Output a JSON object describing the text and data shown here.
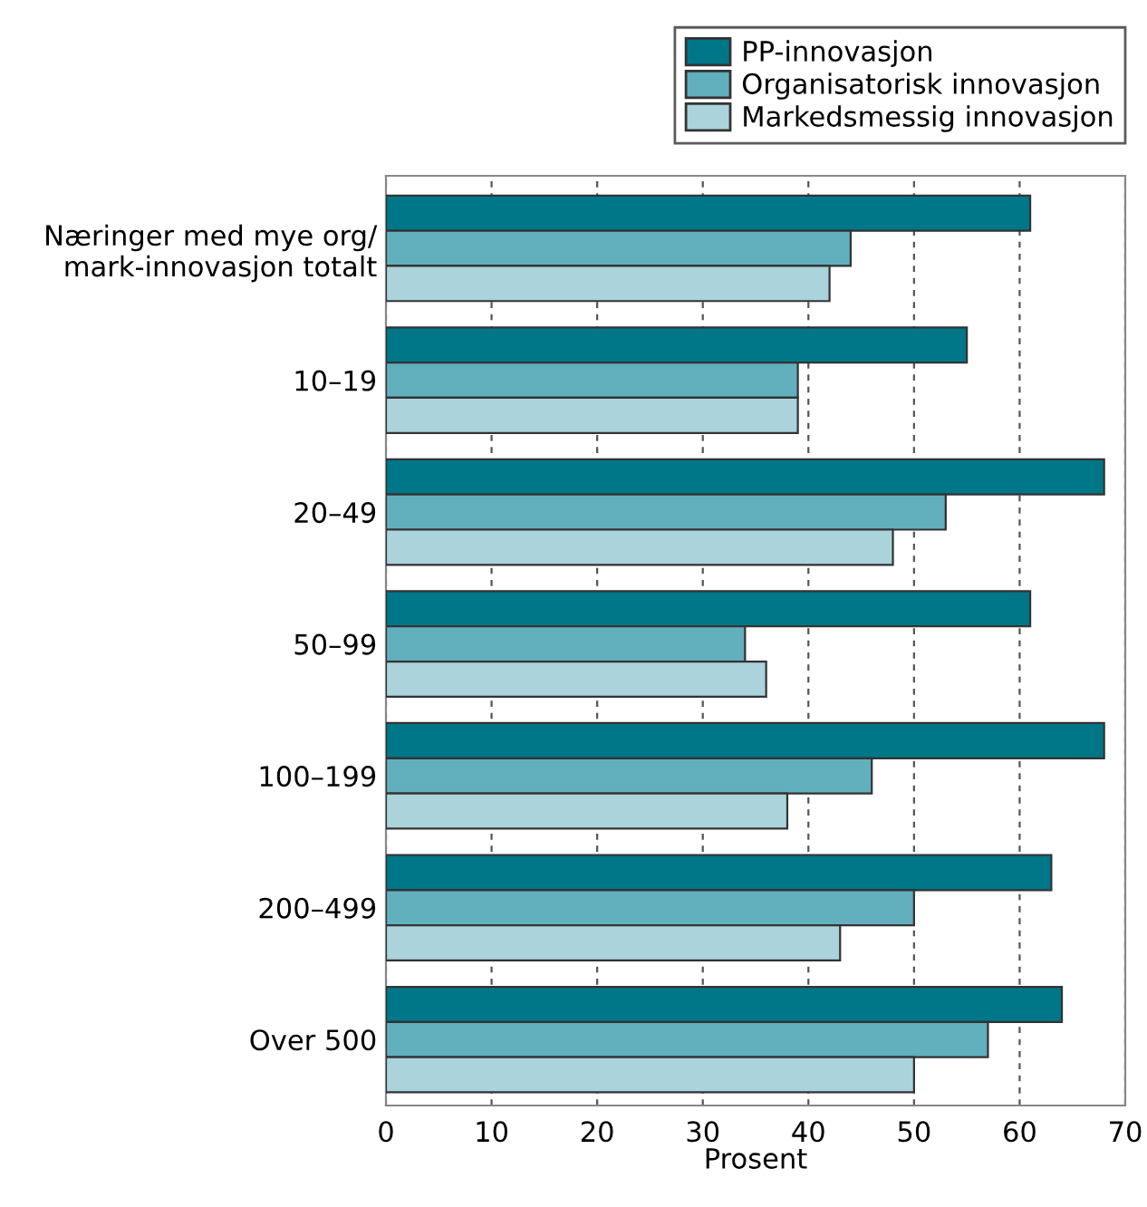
{
  "chart_data": {
    "type": "bar",
    "orientation": "horizontal",
    "categories": [
      "Næringer med mye org/\nmark-innovasjon totalt",
      "10–19",
      "20–49",
      "50–99",
      "100–199",
      "200–499",
      "Over 500"
    ],
    "series": [
      {
        "name": "PP-innovasjon",
        "color": "#007788",
        "values": [
          61,
          55,
          68,
          61,
          68,
          63,
          64
        ]
      },
      {
        "name": "Organisatorisk innovasjon",
        "color": "#62afbd",
        "values": [
          44,
          39,
          53,
          34,
          46,
          50,
          57
        ]
      },
      {
        "name": "Markedsmessig innovasjon",
        "color": "#aad3dc",
        "values": [
          42,
          39,
          48,
          36,
          38,
          43,
          50
        ]
      }
    ],
    "xlabel": "Prosent",
    "xlim": [
      0,
      70
    ],
    "xticks": [
      0,
      10,
      20,
      30,
      40,
      50,
      60,
      70
    ],
    "grid": "x",
    "legend": "top right"
  }
}
